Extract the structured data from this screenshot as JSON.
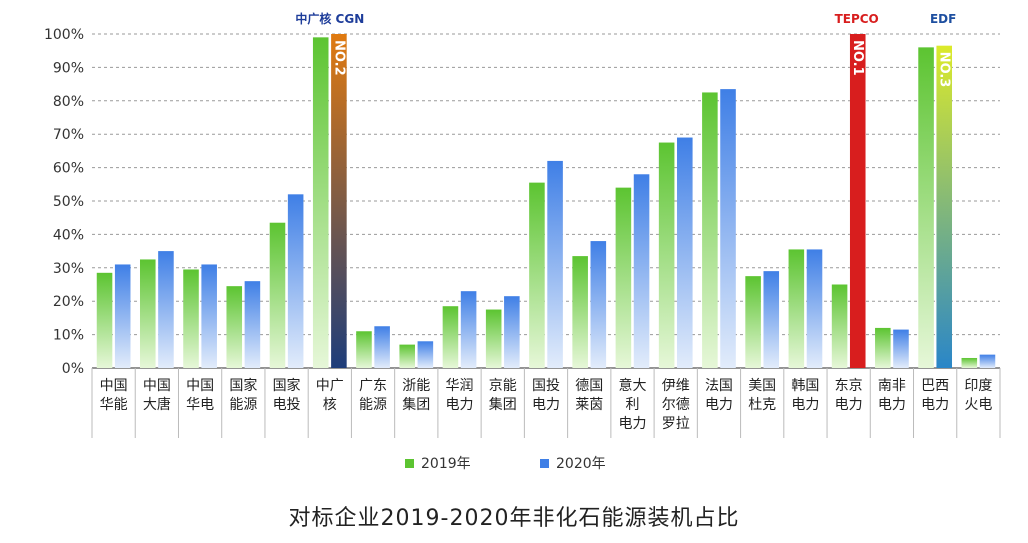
{
  "chart_data": {
    "type": "bar",
    "title": "对标企业2019-2020年非化石能源装机占比",
    "categories": [
      [
        "中国",
        "华能"
      ],
      [
        "中国",
        "大唐"
      ],
      [
        "中国",
        "华电"
      ],
      [
        "国家",
        "能源"
      ],
      [
        "国家",
        "电投"
      ],
      [
        "中广",
        "核"
      ],
      [
        "广东",
        "能源"
      ],
      [
        "浙能",
        "集团"
      ],
      [
        "华润",
        "电力"
      ],
      [
        "京能",
        "集团"
      ],
      [
        "国投",
        "电力"
      ],
      [
        "德国",
        "莱茵"
      ],
      [
        "意大",
        "利",
        "电力"
      ],
      [
        "伊维",
        "尔德",
        "罗拉"
      ],
      [
        "法国",
        "电力"
      ],
      [
        "美国",
        "杜克"
      ],
      [
        "韩国",
        "电力"
      ],
      [
        "东京",
        "电力"
      ],
      [
        "南非",
        "电力"
      ],
      [
        "巴西",
        "电力"
      ],
      [
        "印度",
        "火电"
      ]
    ],
    "series": [
      {
        "name": "2019年",
        "values": [
          28.5,
          32.5,
          29.5,
          24.5,
          43.5,
          99,
          11,
          7,
          18.5,
          17.5,
          55.5,
          33.5,
          54,
          67.5,
          82.5,
          27.5,
          35.5,
          25,
          12,
          96,
          3
        ]
      },
      {
        "name": "2020年",
        "values": [
          31,
          35,
          31,
          26,
          52,
          100,
          12.5,
          8,
          23,
          21.5,
          62,
          38,
          58,
          69,
          83.5,
          29,
          35.5,
          100,
          11.5,
          96.5,
          4
        ]
      }
    ],
    "ylim": [
      0,
      100
    ],
    "yticks": [
      "0%",
      "10%",
      "20%",
      "30%",
      "40%",
      "50%",
      "60%",
      "70%",
      "80%",
      "90%",
      "100%"
    ],
    "grid": true,
    "legend_position": "bottom",
    "colors": {
      "s2019_top": "#5cc431",
      "s2019_bottom": "#e6f7d8",
      "s2020_top": "#3f7fe6",
      "s2020_bottom": "#e2ecfb",
      "cgn_2020": "#e07a10",
      "tepco_2020": "#d81e1e",
      "edf_2020_top": "#dcea2a",
      "edf_2020_bottom": "#2a86c8",
      "cgn_2020_bottom": "#1e3d7a"
    },
    "highlights": [
      {
        "category_index": 5,
        "series_index": 1,
        "label": "NO.2"
      },
      {
        "category_index": 17,
        "series_index": 1,
        "label": "NO.1"
      },
      {
        "category_index": 19,
        "series_index": 1,
        "label": "NO.3"
      }
    ],
    "logos": [
      {
        "category_index": 5,
        "text": "中广核 CGN"
      },
      {
        "category_index": 17,
        "text": "TEPCO"
      },
      {
        "category_index": 19,
        "text": "EDF"
      }
    ]
  }
}
